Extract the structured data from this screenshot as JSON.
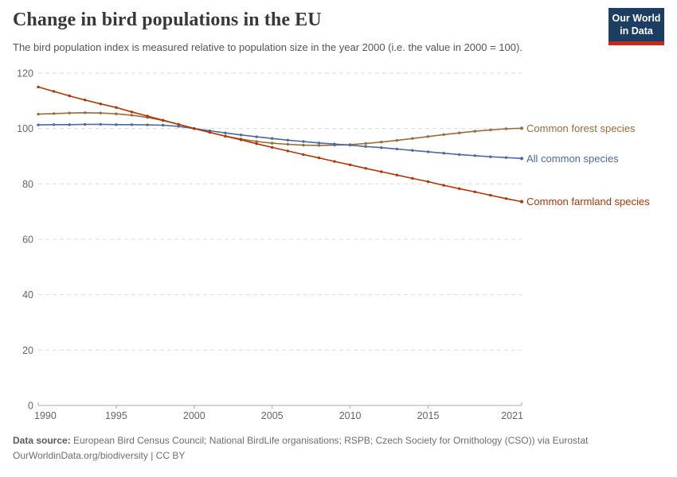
{
  "header": {
    "title": "Change in bird populations in the EU",
    "subtitle": "The bird population index is measured relative to population size in the year 2000 (i.e. the value in 2000 = 100).",
    "logo": {
      "line1": "Our World",
      "line2": "in Data",
      "bg_color": "#1d3d63",
      "stripe_color": "#c6281c"
    }
  },
  "chart_data": {
    "type": "line",
    "title": "Change in bird populations in the EU",
    "x": [
      1990,
      1991,
      1992,
      1993,
      1994,
      1995,
      1996,
      1997,
      1998,
      1999,
      2000,
      2001,
      2002,
      2003,
      2004,
      2005,
      2006,
      2007,
      2008,
      2009,
      2010,
      2011,
      2012,
      2013,
      2014,
      2015,
      2016,
      2017,
      2018,
      2019,
      2020,
      2021
    ],
    "series": [
      {
        "name": "Common forest species",
        "color": "#996d39",
        "values": [
          105.2,
          105.4,
          105.6,
          105.7,
          105.6,
          105.3,
          104.8,
          104.0,
          102.9,
          101.5,
          100.0,
          98.6,
          97.3,
          96.2,
          95.3,
          94.7,
          94.3,
          94.0,
          93.9,
          94.0,
          94.2,
          94.6,
          95.1,
          95.7,
          96.4,
          97.1,
          97.8,
          98.4,
          99.0,
          99.5,
          99.9,
          100.1
        ]
      },
      {
        "name": "All common species",
        "color": "#4c6a9c",
        "values": [
          101.3,
          101.4,
          101.4,
          101.5,
          101.5,
          101.4,
          101.4,
          101.3,
          101.2,
          100.8,
          100.0,
          99.2,
          98.4,
          97.7,
          97.0,
          96.4,
          95.8,
          95.3,
          94.8,
          94.4,
          94.0,
          93.5,
          93.1,
          92.6,
          92.1,
          91.6,
          91.1,
          90.6,
          90.2,
          89.8,
          89.5,
          89.2
        ]
      },
      {
        "name": "Common farmland species",
        "color": "#b13507",
        "values": [
          115.0,
          113.4,
          111.8,
          110.3,
          108.9,
          107.6,
          106.0,
          104.5,
          103.0,
          101.5,
          100.0,
          98.6,
          97.2,
          95.9,
          94.5,
          93.2,
          91.9,
          90.6,
          89.4,
          88.1,
          86.9,
          85.6,
          84.4,
          83.2,
          82.0,
          80.8,
          79.5,
          78.3,
          77.1,
          75.9,
          74.7,
          73.6
        ]
      }
    ],
    "xticks": [
      1990,
      1995,
      2000,
      2005,
      2010,
      2015,
      2021
    ],
    "yticks": [
      0,
      20,
      40,
      60,
      80,
      100,
      120
    ],
    "xlim": [
      1990,
      2021
    ],
    "ylim": [
      0,
      120
    ],
    "grid": "horizontal-dashed",
    "grid_color": "#dcdcdc",
    "axis_color": "#a8a8a8",
    "tick_label_color": "#666666",
    "legend_position": "right-of-line-end"
  },
  "footer": {
    "source_label": "Data source:",
    "source_text": " European Bird Census Council; National BirdLife organisations; RSPB; Czech Society for Ornithology (CSO)) via Eurostat",
    "link_url": "OurWorldinData.org/biodiversity",
    "separator": " | ",
    "license": "CC BY"
  }
}
